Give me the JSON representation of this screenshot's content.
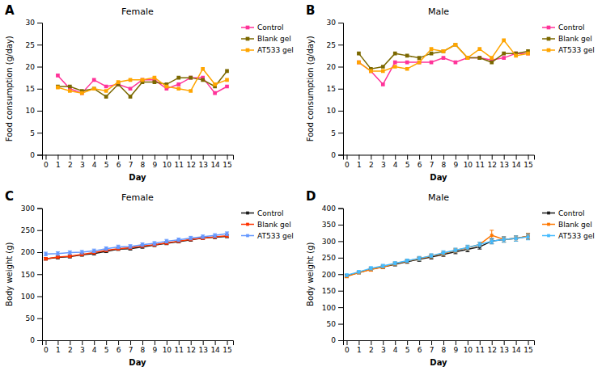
{
  "chart_data": [
    {
      "type": "line",
      "annotation": "A",
      "title": "Female",
      "xlabel": "Day",
      "ylabel": "Food consumption (g/day)",
      "x": [
        1,
        2,
        3,
        4,
        5,
        6,
        7,
        8,
        9,
        10,
        11,
        12,
        13,
        14,
        15
      ],
      "series": [
        {
          "name": "Control",
          "color": "#FF3399",
          "marker": "square",
          "values": [
            18,
            15,
            14,
            17,
            15.5,
            16,
            15,
            17,
            17,
            15,
            16,
            17.5,
            17.5,
            14,
            15.5
          ]
        },
        {
          "name": "Blank gel",
          "color": "#7B6800",
          "marker": "square",
          "values": [
            15.5,
            15.5,
            14.5,
            15,
            13.2,
            16,
            13.2,
            16.5,
            16.5,
            16,
            17.5,
            17.5,
            17,
            15.5,
            19
          ]
        },
        {
          "name": "AT533 gel",
          "color": "#FFA500",
          "marker": "square",
          "values": [
            15.3,
            14.5,
            14,
            15,
            14.5,
            16.5,
            17,
            17,
            17.5,
            15.5,
            15,
            14.5,
            19.5,
            16,
            17
          ]
        }
      ],
      "xlim": [
        -0.3,
        15.5
      ],
      "xticks": [
        0,
        1,
        2,
        3,
        4,
        5,
        6,
        7,
        8,
        9,
        10,
        11,
        12,
        13,
        14,
        15
      ],
      "ylim": [
        0,
        30
      ],
      "yticks": [
        0,
        5,
        10,
        15,
        20,
        25,
        30
      ],
      "legend": "upper right",
      "grid": false
    },
    {
      "type": "line",
      "annotation": "B",
      "title": "Male",
      "xlabel": "Day",
      "ylabel": "Food consumption (g/day)",
      "x": [
        1,
        2,
        3,
        4,
        5,
        6,
        7,
        8,
        9,
        10,
        11,
        12,
        13,
        14,
        15
      ],
      "series": [
        {
          "name": "Control",
          "color": "#FF3399",
          "marker": "square",
          "values": [
            21,
            19,
            16,
            21,
            21,
            21,
            21,
            22,
            21,
            22,
            22,
            21.5,
            22,
            23,
            23
          ]
        },
        {
          "name": "Blank gel",
          "color": "#7B6800",
          "marker": "square",
          "values": [
            23,
            19.5,
            20,
            23,
            22.5,
            22,
            23,
            23.5,
            25,
            22,
            22,
            21,
            23,
            23,
            23.5
          ]
        },
        {
          "name": "AT533 gel",
          "color": "#FFA500",
          "marker": "square",
          "values": [
            21,
            19,
            19,
            20,
            19.5,
            21,
            24,
            23.5,
            25,
            22,
            24,
            22,
            26,
            22.5,
            23
          ]
        }
      ],
      "xlim": [
        -0.3,
        15.5
      ],
      "xticks": [
        0,
        1,
        2,
        3,
        4,
        5,
        6,
        7,
        8,
        9,
        10,
        11,
        12,
        13,
        14,
        15
      ],
      "ylim": [
        0,
        30
      ],
      "yticks": [
        0,
        5,
        10,
        15,
        20,
        25,
        30
      ],
      "legend": "upper right",
      "grid": false
    },
    {
      "type": "line",
      "annotation": "C",
      "title": "Female",
      "xlabel": "Day",
      "ylabel": "Body weight (g)",
      "x": [
        0,
        1,
        2,
        3,
        4,
        5,
        6,
        7,
        8,
        9,
        10,
        11,
        12,
        13,
        14,
        15
      ],
      "series": [
        {
          "name": "Control",
          "color": "#1a1a1a",
          "marker": "square",
          "values": [
            185,
            188,
            190,
            194,
            197,
            202,
            207,
            208,
            212,
            216,
            220,
            224,
            228,
            232,
            234,
            236
          ],
          "errors": [
            3,
            3,
            3,
            3,
            3,
            3,
            3,
            3,
            3,
            3,
            3,
            3,
            3,
            3,
            3,
            3
          ]
        },
        {
          "name": "Blank gel",
          "color": "#FF3300",
          "marker": "square",
          "values": [
            185,
            189,
            191,
            195,
            199,
            204,
            208,
            210,
            214,
            217,
            221,
            225,
            229,
            232,
            235,
            237
          ],
          "errors": [
            3,
            3,
            3,
            3,
            3,
            3,
            3,
            3,
            3,
            3,
            3,
            3,
            3,
            3,
            3,
            3
          ]
        },
        {
          "name": "AT533 gel",
          "color": "#6699FF",
          "marker": "square",
          "values": [
            196,
            197,
            199,
            200,
            203,
            208,
            212,
            213,
            217,
            220,
            225,
            228,
            232,
            235,
            238,
            242
          ],
          "errors": [
            4,
            4,
            4,
            4,
            4,
            4,
            4,
            4,
            4,
            4,
            4,
            4,
            4,
            4,
            4,
            4
          ]
        }
      ],
      "xlim": [
        -0.3,
        15.5
      ],
      "xticks": [
        0,
        1,
        2,
        3,
        4,
        5,
        6,
        7,
        8,
        9,
        10,
        11,
        12,
        13,
        14,
        15
      ],
      "ylim": [
        0,
        300
      ],
      "yticks": [
        0,
        50,
        100,
        150,
        200,
        250,
        300
      ],
      "legend": "upper right",
      "grid": false
    },
    {
      "type": "line",
      "annotation": "D",
      "title": "Male",
      "xlabel": "Day",
      "ylabel": "Body weight (g)",
      "x": [
        0,
        1,
        2,
        3,
        4,
        5,
        6,
        7,
        8,
        9,
        10,
        11,
        12,
        13,
        14,
        15
      ],
      "series": [
        {
          "name": "Control",
          "color": "#1a1a1a",
          "marker": "square",
          "values": [
            195,
            205,
            215,
            222,
            230,
            238,
            245,
            252,
            260,
            268,
            275,
            283,
            300,
            305,
            308,
            315
          ],
          "errors": [
            4,
            4,
            5,
            5,
            5,
            5,
            6,
            6,
            6,
            6,
            7,
            7,
            8,
            8,
            8,
            9
          ]
        },
        {
          "name": "Blank gel",
          "color": "#FF7700",
          "marker": "square",
          "values": [
            193,
            205,
            214,
            222,
            232,
            240,
            247,
            255,
            263,
            272,
            280,
            290,
            318,
            305,
            308,
            315
          ],
          "errors": [
            4,
            4,
            5,
            5,
            5,
            5,
            6,
            6,
            6,
            6,
            7,
            7,
            15,
            8,
            8,
            9
          ]
        },
        {
          "name": "AT533 gel",
          "color": "#44BBFF",
          "marker": "square",
          "values": [
            197,
            207,
            218,
            225,
            233,
            241,
            248,
            256,
            265,
            273,
            281,
            290,
            300,
            305,
            308,
            313
          ],
          "errors": [
            4,
            4,
            5,
            5,
            5,
            5,
            6,
            6,
            6,
            6,
            7,
            7,
            8,
            8,
            8,
            9
          ]
        }
      ],
      "xlim": [
        -0.3,
        15.5
      ],
      "xticks": [
        0,
        1,
        2,
        3,
        4,
        5,
        6,
        7,
        8,
        9,
        10,
        11,
        12,
        13,
        14,
        15
      ],
      "ylim": [
        0,
        400
      ],
      "yticks": [
        0,
        50,
        100,
        150,
        200,
        250,
        300,
        350,
        400
      ],
      "legend": "upper right",
      "grid": false
    }
  ]
}
